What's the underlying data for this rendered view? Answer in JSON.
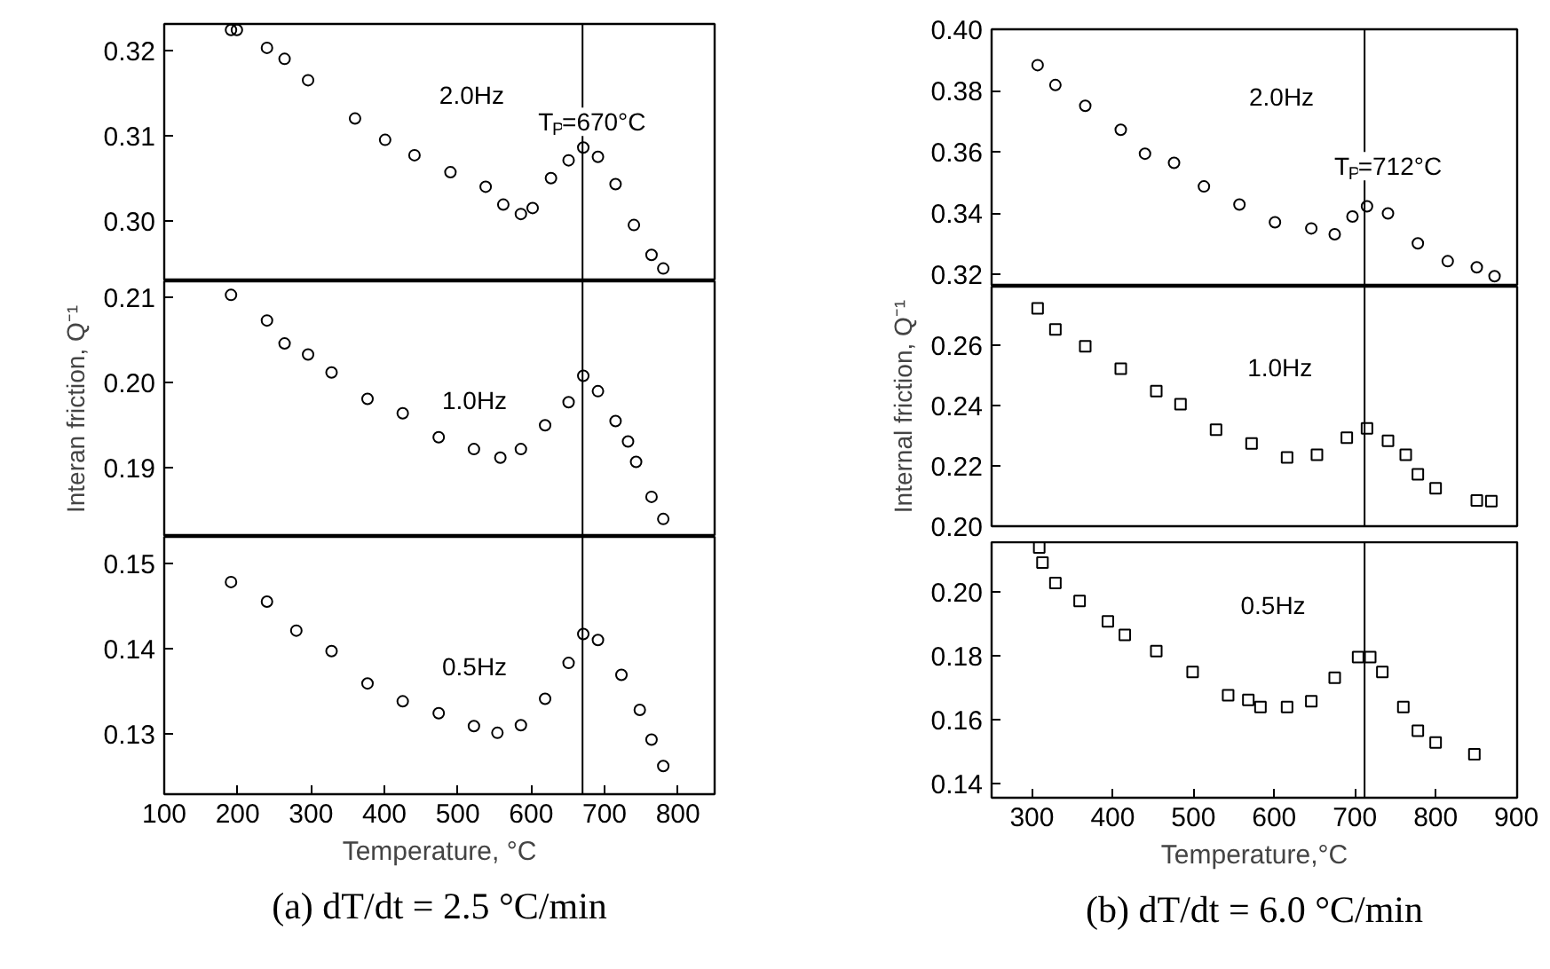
{
  "chart_data": [
    {
      "type": "scatter",
      "marker": "circle",
      "grid": false,
      "tick_labels": "y",
      "xlim": [
        100,
        850
      ],
      "ylim": [
        0.2929,
        0.3231
      ],
      "yticks": [
        {
          "value": 0.3,
          "label": "0.30"
        },
        0.31,
        0.32
      ],
      "x": [
        191,
        199,
        240,
        264,
        296,
        360,
        401,
        441,
        490,
        538,
        562,
        586,
        602,
        627,
        651,
        671,
        691,
        715,
        740,
        764,
        780
      ],
      "values": [
        0.3224,
        0.3224,
        0.3203,
        0.319,
        0.3165,
        0.312,
        0.3095,
        0.3077,
        0.3057,
        0.304,
        0.3019,
        0.3008,
        0.3015,
        0.305,
        0.3071,
        0.3086,
        0.3075,
        0.3043,
        0.2995,
        0.296,
        0.2944
      ],
      "color": "#000000",
      "ref_lines": [
        {
          "axis": "x",
          "value": 670
        }
      ],
      "annotations": [
        "2.0Hz",
        "T$_{P}$=670°C"
      ]
    },
    {
      "type": "scatter",
      "marker": "circle",
      "grid": false,
      "tick_labels": "y",
      "xlim": [
        100,
        850
      ],
      "ylim": [
        0.1819,
        0.2119
      ],
      "yticks": [
        0.19,
        {
          "value": 0.2,
          "label": "0.20"
        },
        0.21
      ],
      "ylabel": "Interan friction, Q⁻¹",
      "x": [
        191,
        240,
        264,
        296,
        328,
        377,
        425,
        474,
        522,
        558,
        586,
        619,
        651,
        671,
        691,
        715,
        732,
        743,
        764,
        780
      ],
      "values": [
        0.2103,
        0.2073,
        0.2046,
        0.2033,
        0.2012,
        0.1981,
        0.1964,
        0.1936,
        0.1922,
        0.1912,
        0.1922,
        0.195,
        0.1977,
        0.2008,
        0.199,
        0.1955,
        0.1931,
        0.1907,
        0.1866,
        0.184
      ],
      "color": "#000000",
      "ref_lines": [
        {
          "axis": "x",
          "value": 670
        }
      ],
      "annotations": [
        "1.0Hz"
      ]
    },
    {
      "type": "scatter",
      "marker": "circle",
      "grid": false,
      "xlim": [
        100,
        850
      ],
      "ylim": [
        0.1229,
        0.1531
      ],
      "xticks": [
        100,
        200,
        300,
        400,
        500,
        600,
        700,
        800
      ],
      "yticks": [
        0.13,
        0.14,
        0.15
      ],
      "xlabel": "Temperature, °C",
      "title": "(a) dT/dt = 2.5 °C/min",
      "x": [
        191,
        240,
        280,
        328,
        377,
        425,
        474,
        522,
        554,
        586,
        619,
        651,
        671,
        691,
        723,
        748,
        764,
        780
      ],
      "values": [
        0.1478,
        0.1455,
        0.1421,
        0.1397,
        0.1359,
        0.1338,
        0.1324,
        0.1309,
        0.1301,
        0.131,
        0.1341,
        0.1383,
        0.1417,
        0.141,
        0.1369,
        0.1328,
        0.1293,
        0.1262
      ],
      "color": "#000000",
      "ref_lines": [
        {
          "axis": "x",
          "value": 670
        }
      ],
      "annotations": [
        "0.5Hz"
      ]
    },
    {
      "type": "scatter",
      "marker": "circle",
      "grid": false,
      "tick_labels": "y",
      "xlim": [
        250,
        901
      ],
      "ylim": [
        0.316,
        0.4
      ],
      "yticks": [
        0.32,
        0.34,
        0.36,
        0.38,
        {
          "value": 0.4,
          "label": "0.40"
        }
      ],
      "x": [
        307,
        329,
        366,
        410,
        440,
        476,
        513,
        557,
        601,
        646,
        675,
        697,
        715,
        741,
        778,
        815,
        851,
        873
      ],
      "values": [
        0.3883,
        0.3818,
        0.375,
        0.3672,
        0.3594,
        0.3564,
        0.3487,
        0.3428,
        0.337,
        0.335,
        0.3331,
        0.3389,
        0.3422,
        0.3399,
        0.3301,
        0.3243,
        0.3223,
        0.3194
      ],
      "color": "#000000",
      "ref_lines": [
        {
          "axis": "x",
          "value": 712
        }
      ],
      "annotations": [
        "2.0Hz",
        "T$_{P}$=712°C"
      ]
    },
    {
      "type": "scatter",
      "marker": "square",
      "grid": false,
      "tick_labels": "y",
      "xlim": [
        250,
        901
      ],
      "ylim": [
        0.2,
        0.2794
      ],
      "yticks": [
        {
          "value": 0.2,
          "label": "0.20"
        },
        0.22,
        0.24,
        0.26
      ],
      "ylabel": "Internal friction, Q⁻¹",
      "x": [
        307,
        329,
        366,
        410,
        454,
        484,
        528,
        572,
        616,
        653,
        690,
        715,
        741,
        763,
        778,
        800,
        851,
        869
      ],
      "values": [
        0.2722,
        0.2652,
        0.2596,
        0.2522,
        0.2448,
        0.2404,
        0.232,
        0.2274,
        0.2228,
        0.2237,
        0.2293,
        0.2324,
        0.2283,
        0.2237,
        0.2172,
        0.2126,
        0.2085,
        0.2083
      ],
      "color": "#000000",
      "ref_lines": [
        {
          "axis": "x",
          "value": 712
        }
      ],
      "annotations": [
        "1.0Hz"
      ]
    },
    {
      "type": "scatter",
      "marker": "square",
      "grid": false,
      "xlim": [
        250,
        901
      ],
      "ylim": [
        0.1356,
        0.2156
      ],
      "xticks": [
        300,
        400,
        500,
        600,
        700,
        800,
        900
      ],
      "yticks": [
        0.14,
        0.16,
        0.18,
        {
          "value": 0.2,
          "label": "0.20"
        }
      ],
      "xlabel": "Temperature,°C",
      "title": "(b) dT/dt = 6.0 °C/min",
      "x": [
        309,
        313,
        329,
        359,
        394,
        415,
        454,
        499,
        543,
        568,
        583,
        616,
        646,
        675,
        704,
        719,
        734,
        760,
        778,
        800,
        848
      ],
      "values": [
        0.2139,
        0.2092,
        0.2028,
        0.1972,
        0.1908,
        0.1866,
        0.1815,
        0.175,
        0.1677,
        0.1662,
        0.164,
        0.164,
        0.1658,
        0.1732,
        0.1796,
        0.1796,
        0.175,
        0.164,
        0.1566,
        0.1529,
        0.1492
      ],
      "color": "#000000",
      "ref_lines": [
        {
          "axis": "x",
          "value": 712
        }
      ],
      "annotations": [
        "0.5Hz"
      ]
    }
  ]
}
